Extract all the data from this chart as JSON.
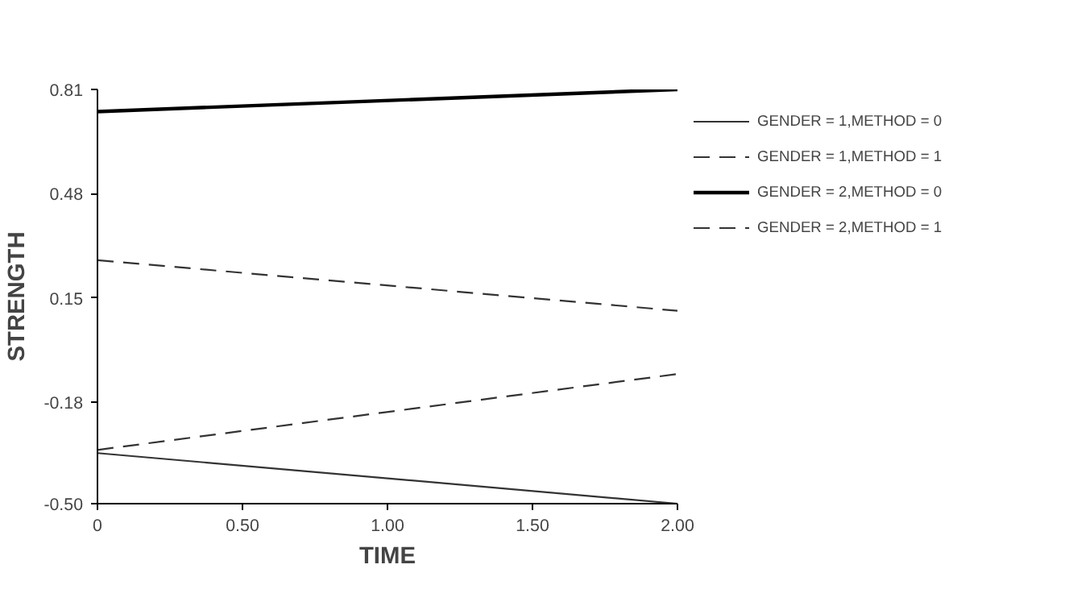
{
  "chart_data": {
    "type": "line",
    "xlabel": "TIME",
    "ylabel": "STRENGTH",
    "x": [
      0,
      2
    ],
    "series": [
      {
        "name": "GENDER = 1,METHOD = 0",
        "color": "#333333",
        "values": [
          -0.34,
          -0.5
        ],
        "line_style": "solid"
      },
      {
        "name": "GENDER = 1,METHOD = 1",
        "color": "#333333",
        "values": [
          -0.33,
          -0.09
        ],
        "line_style": "dashed"
      },
      {
        "name": "GENDER = 2,METHOD = 0",
        "color": "#000000",
        "values": [
          0.74,
          0.81
        ],
        "line_style": "solid"
      },
      {
        "name": "GENDER = 2,METHOD = 1",
        "color": "#333333",
        "values": [
          0.27,
          0.11
        ],
        "line_style": "dashed"
      }
    ],
    "xlim": [
      0,
      2
    ],
    "ylim": [
      -0.5,
      0.81
    ],
    "xticks": [
      0,
      {
        "value": 0.5,
        "label": "0.50"
      },
      {
        "value": 1,
        "label": "1.00"
      },
      {
        "value": 1.5,
        "label": "1.50"
      },
      {
        "value": 2,
        "label": "2.00"
      }
    ],
    "yticks": [
      {
        "value": -0.5,
        "label": "-0.50"
      },
      {
        "value": -0.18,
        "label": "-0.18"
      },
      {
        "value": 0.15,
        "label": "0.15"
      },
      {
        "value": 0.48,
        "label": "0.48"
      },
      {
        "value": 0.81,
        "label": "0.81"
      }
    ],
    "grid": false,
    "legend": "top right",
    "marker": "none"
  }
}
